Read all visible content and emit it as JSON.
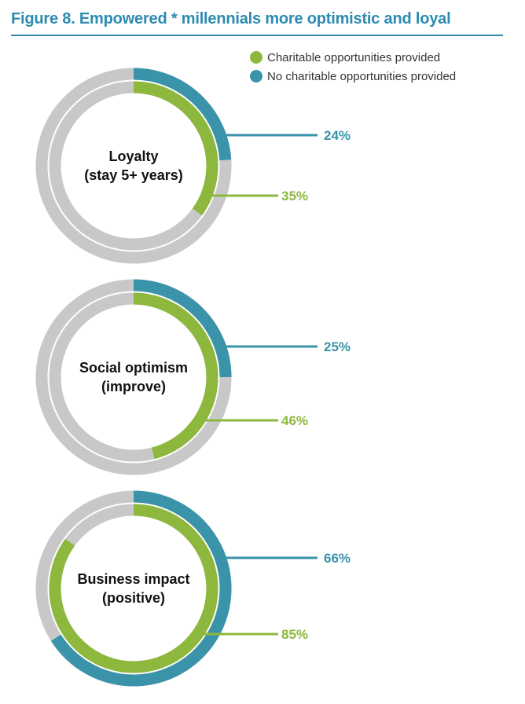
{
  "header": {
    "title": "Figure 8. Empowered * millennials more optimistic and loyal"
  },
  "colors": {
    "accent": "#2b8bb0",
    "charitable": "#8db83d",
    "no_charitable": "#3a93a8",
    "track": "#c8c8c8"
  },
  "chart_data": {
    "type": "donut",
    "title": "Figure 8. Empowered * millennials more optimistic and loyal",
    "legend_position": "top-right",
    "series": [
      {
        "name": "Charitable opportunities provided",
        "color": "#8db83d",
        "ring": "inner"
      },
      {
        "name": "No charitable opportunities provided",
        "color": "#3a93a8",
        "ring": "outer"
      }
    ],
    "categories": [
      {
        "label_lines": [
          "Loyalty",
          "(stay 5+ years)"
        ],
        "charitable": 35,
        "no_charitable": 24
      },
      {
        "label_lines": [
          "Social optimism",
          "(improve)"
        ],
        "charitable": 46,
        "no_charitable": 25
      },
      {
        "label_lines": [
          "Business impact",
          "(positive)"
        ],
        "charitable": 85,
        "no_charitable": 66
      }
    ],
    "unit": "%"
  }
}
